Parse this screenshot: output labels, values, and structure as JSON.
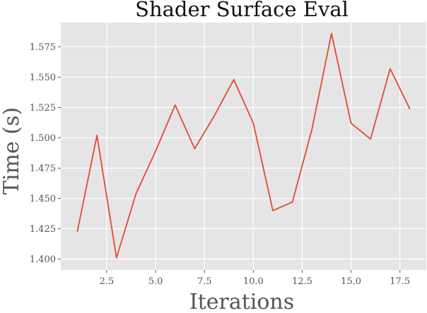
{
  "chart_data": {
    "type": "line",
    "title": "Shader Surface Eval",
    "xlabel": "Iterations",
    "ylabel": "Time (s)",
    "xlim": [
      0.15,
      18.85
    ],
    "ylim": [
      1.391,
      1.595
    ],
    "xticks": [
      2.5,
      5.0,
      7.5,
      10.0,
      12.5,
      15.0,
      17.5
    ],
    "xtick_labels": [
      "2.5",
      "5.0",
      "7.5",
      "10.0",
      "12.5",
      "15.0",
      "17.5"
    ],
    "yticks": [
      1.4,
      1.425,
      1.45,
      1.475,
      1.5,
      1.525,
      1.55,
      1.575
    ],
    "ytick_labels": [
      "1.400",
      "1.425",
      "1.450",
      "1.475",
      "1.500",
      "1.525",
      "1.550",
      "1.575"
    ],
    "grid": true,
    "series": [
      {
        "name": "",
        "x": [
          1,
          2,
          3,
          4,
          5,
          6,
          7,
          8,
          9,
          10,
          11,
          12,
          13,
          14,
          15,
          16,
          17,
          18
        ],
        "values": [
          1.423,
          1.502,
          1.401,
          1.454,
          1.489,
          1.527,
          1.491,
          1.518,
          1.548,
          1.512,
          1.44,
          1.447,
          1.507,
          1.586,
          1.512,
          1.499,
          1.557,
          1.524
        ]
      }
    ],
    "colors": {
      "line": "#e24a33",
      "plot_background": "#e5e5e5",
      "grid": "#ffffff"
    }
  }
}
